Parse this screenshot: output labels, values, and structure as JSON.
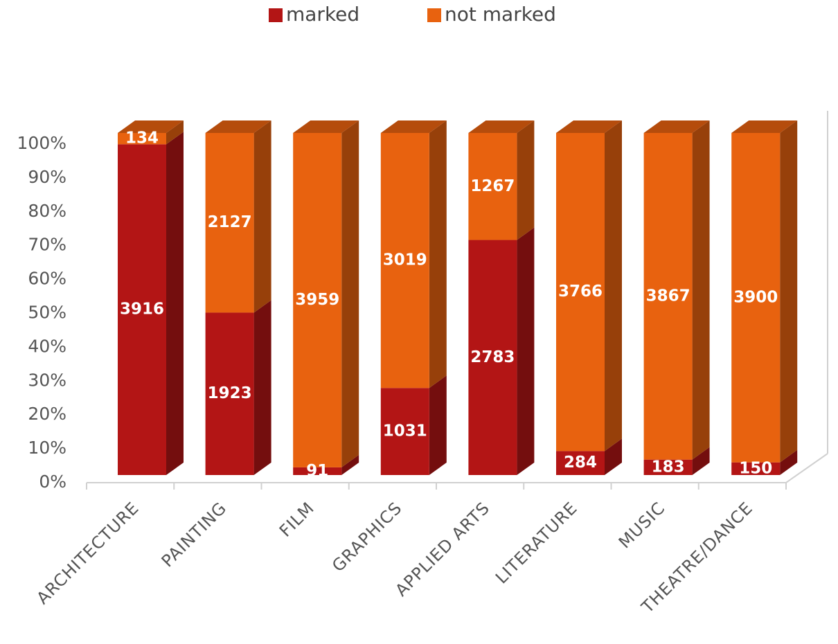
{
  "chart_data": {
    "type": "bar",
    "stacking": "percent",
    "categories": [
      "ARCHITECTURE",
      "PAINTING",
      "FILM",
      "GRAPHICS",
      "APPLIED ARTS",
      "LITERATURE",
      "MUSIC",
      "THEATRE/DANCE"
    ],
    "series": [
      {
        "name": "marked",
        "color": "#b31515",
        "values": [
          3916,
          1923,
          91,
          1031,
          2783,
          284,
          183,
          150
        ]
      },
      {
        "name": "not marked",
        "color": "#e8620f",
        "values": [
          134,
          2127,
          3959,
          3019,
          1267,
          3766,
          3867,
          3900
        ]
      }
    ],
    "ylim": [
      0,
      100
    ],
    "yticks": [
      {
        "value": 0,
        "label": "0%"
      },
      {
        "value": 10,
        "label": "10%"
      },
      {
        "value": 20,
        "label": "20%"
      },
      {
        "value": 30,
        "label": "30%"
      },
      {
        "value": 40,
        "label": "40%"
      },
      {
        "value": 50,
        "label": "50%"
      },
      {
        "value": 60,
        "label": "60%"
      },
      {
        "value": 70,
        "label": "70%"
      },
      {
        "value": 80,
        "label": "80%"
      },
      {
        "value": 90,
        "label": "90%"
      },
      {
        "value": 100,
        "label": "100%"
      }
    ],
    "legend": "top"
  }
}
